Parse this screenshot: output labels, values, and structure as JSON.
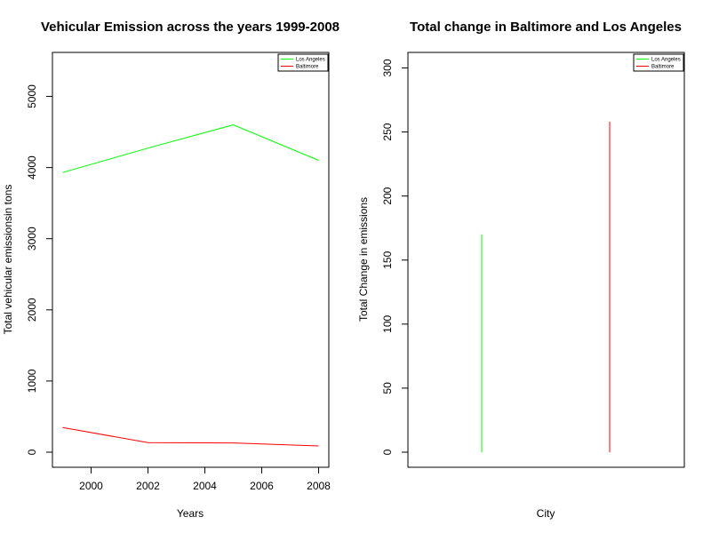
{
  "colors": {
    "los_angeles": "#00ff00",
    "baltimore": "#ff0000",
    "axis": "#000000",
    "background": "#ffffff"
  },
  "chart_data": [
    {
      "type": "line",
      "title": "Vehicular Emission across the years 1999-2008",
      "xlabel": "Years",
      "ylabel": "Total vehicular emissionsin tons",
      "xlim": [
        1999,
        2008
      ],
      "ylim": [
        0,
        5400
      ],
      "xticks": [
        2000,
        2002,
        2004,
        2006,
        2008
      ],
      "yticks": [
        0,
        1000,
        2000,
        3000,
        4000,
        5000
      ],
      "x": [
        1999,
        2002,
        2005,
        2008
      ],
      "series": [
        {
          "name": "Los Angeles",
          "color": "#00ff00",
          "values": [
            3931,
            4274,
            4601,
            4101
          ]
        },
        {
          "name": "Baltimore",
          "color": "#ff0000",
          "values": [
            347,
            134,
            130,
            88
          ]
        }
      ],
      "legend": {
        "position": "top-right",
        "entries": [
          "Los Angeles",
          "Baltimore"
        ]
      },
      "grid": false
    },
    {
      "type": "bar",
      "style": "vertical-lines",
      "title": "Total change in Baltimore and Los Angeles",
      "xlabel": "City",
      "ylabel": "Total Change in emissions",
      "ylim": [
        0,
        300
      ],
      "yticks": [
        0,
        50,
        100,
        150,
        200,
        250,
        300
      ],
      "categories": [
        "Los Angeles",
        "Baltimore"
      ],
      "series": [
        {
          "name": "Total change",
          "values": [
            170,
            258
          ]
        }
      ],
      "bar_colors": [
        "#00ff00",
        "#ff0000"
      ],
      "legend": {
        "position": "top-right",
        "entries": [
          "Los Angeles",
          "Baltimore"
        ]
      },
      "grid": false
    }
  ]
}
